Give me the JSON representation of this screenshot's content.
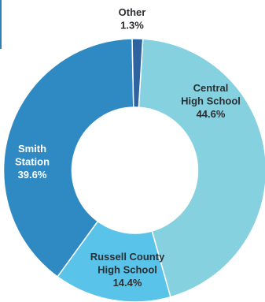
{
  "chart_data": {
    "type": "pie",
    "donut": true,
    "title": "",
    "series": [
      {
        "labels": [
          "Central High School",
          "Russell County High School",
          "Smith Station",
          "Other"
        ],
        "values": [
          44.6,
          14.4,
          39.6,
          1.3
        ],
        "colors": [
          "#86d1df",
          "#59c3e9",
          "#2f8ac3",
          "#2f63a0"
        ]
      }
    ],
    "legend": "none",
    "data_labels": [
      {
        "lines": [
          "Central",
          "High School",
          "44.6%"
        ],
        "color": "#2b2f33"
      },
      {
        "lines": [
          "Russell County",
          "High School",
          "14.4%"
        ],
        "color": "#2b2f33"
      },
      {
        "lines": [
          "Smith",
          "Station",
          "39.6%"
        ],
        "color": "#ffffff"
      },
      {
        "lines": [
          "Other",
          "1.3%"
        ],
        "color": "#2b2f33"
      }
    ]
  }
}
